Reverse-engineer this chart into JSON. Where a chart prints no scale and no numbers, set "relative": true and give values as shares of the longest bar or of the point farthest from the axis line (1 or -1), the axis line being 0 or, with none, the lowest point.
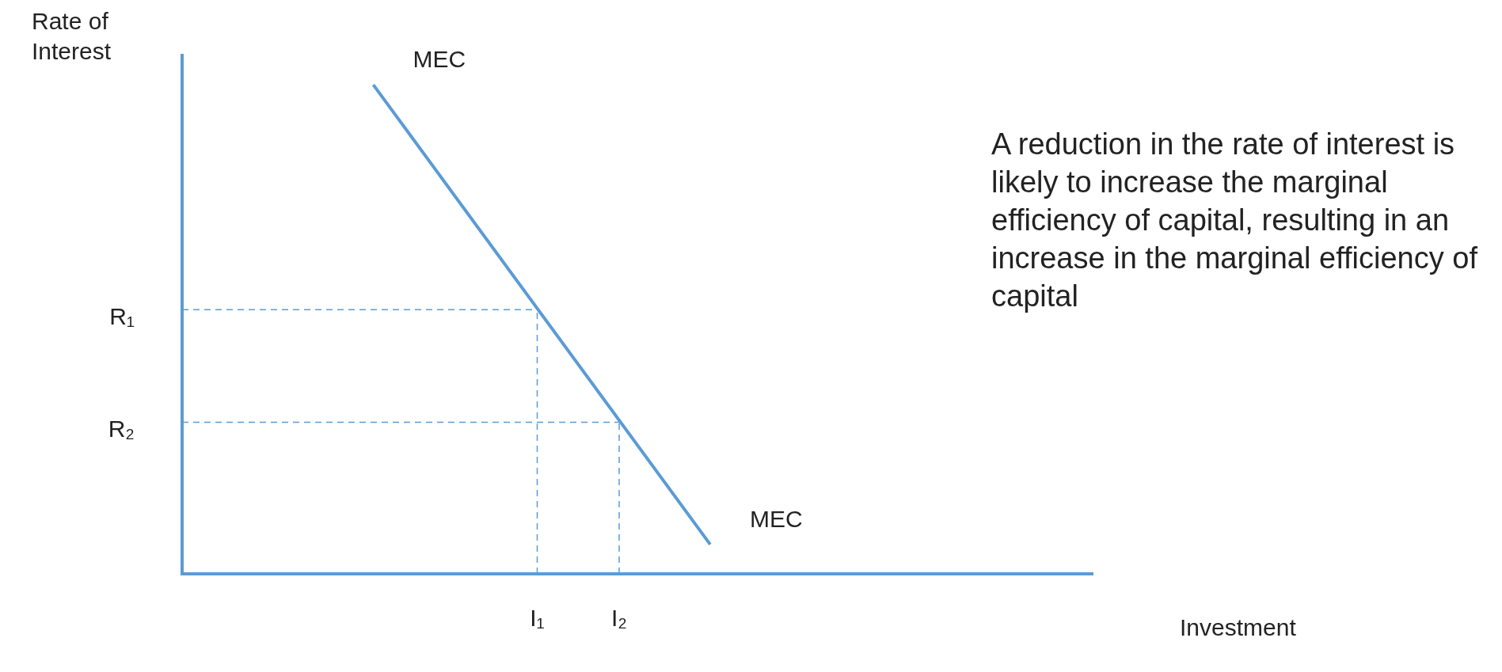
{
  "chart_data": {
    "type": "line",
    "relative": true,
    "xlabel": "Investment",
    "ylabel": "Rate of Interest",
    "marker": "none",
    "grid": false,
    "legend": false,
    "categories": [
      null,
      null,
      null,
      null,
      null,
      null,
      null,
      null,
      null,
      null,
      null,
      null,
      null,
      null,
      null,
      null,
      null,
      null,
      null,
      null,
      null,
      null,
      null,
      null,
      null,
      null,
      null,
      null,
      null,
      null,
      null,
      null,
      null,
      null,
      null,
      null,
      null,
      null,
      null,
      "I₁",
      null,
      null,
      null,
      null,
      null,
      null,
      null,
      null,
      "I₂",
      null,
      null,
      null,
      null,
      null,
      null,
      null,
      null,
      null,
      null,
      null,
      null,
      null,
      null,
      null,
      null,
      null,
      null,
      null,
      null,
      null,
      null,
      null,
      null,
      null,
      null,
      null,
      null,
      null,
      null,
      null,
      null,
      null,
      null,
      null,
      null,
      null,
      null,
      null,
      null,
      null,
      null,
      null,
      null,
      null,
      null,
      null,
      null,
      null,
      null,
      null,
      null
    ],
    "series": [
      {
        "name": "MEC",
        "type": "line",
        "color": "#5b9bd5",
        "line_style": "solid",
        "values": [
          null,
          null,
          null,
          null,
          null,
          null,
          null,
          null,
          null,
          null,
          null,
          null,
          null,
          null,
          null,
          null,
          null,
          null,
          null,
          null,
          null,
          1,
          null,
          null,
          null,
          null,
          null,
          null,
          null,
          null,
          null,
          null,
          null,
          null,
          null,
          null,
          null,
          null,
          null,
          null,
          null,
          null,
          null,
          null,
          null,
          null,
          null,
          null,
          null,
          null,
          null,
          null,
          null,
          null,
          null,
          null,
          null,
          null,
          0.06,
          null,
          null,
          null,
          null,
          null,
          null,
          null,
          null,
          null,
          null,
          null,
          null,
          null,
          null,
          null,
          null,
          null,
          null,
          null,
          null,
          null,
          null,
          null,
          null,
          null,
          null,
          null,
          null,
          null,
          null,
          null,
          null,
          null,
          null,
          null,
          null,
          null,
          null,
          null,
          null,
          null,
          null
        ]
      }
    ],
    "ref_lines": [
      {
        "axis": "y",
        "value": 0.54,
        "label": "R₁",
        "color": "#5b9bd5",
        "line_style": "dashed"
      },
      {
        "axis": "y",
        "value": 0.31,
        "label": "R₂",
        "color": "#5b9bd5",
        "line_style": "dashed"
      },
      {
        "axis": "x",
        "value": "I₁",
        "color": "#5b9bd5",
        "line_style": "dashed"
      },
      {
        "axis": "x",
        "value": "I₂",
        "color": "#5b9bd5",
        "line_style": "dashed"
      }
    ],
    "annotations": [
      "A reduction in the rate of interest is likely to increase the marginal efficiency of capital, resulting in an increase in the marginal efficiency of capital"
    ]
  }
}
